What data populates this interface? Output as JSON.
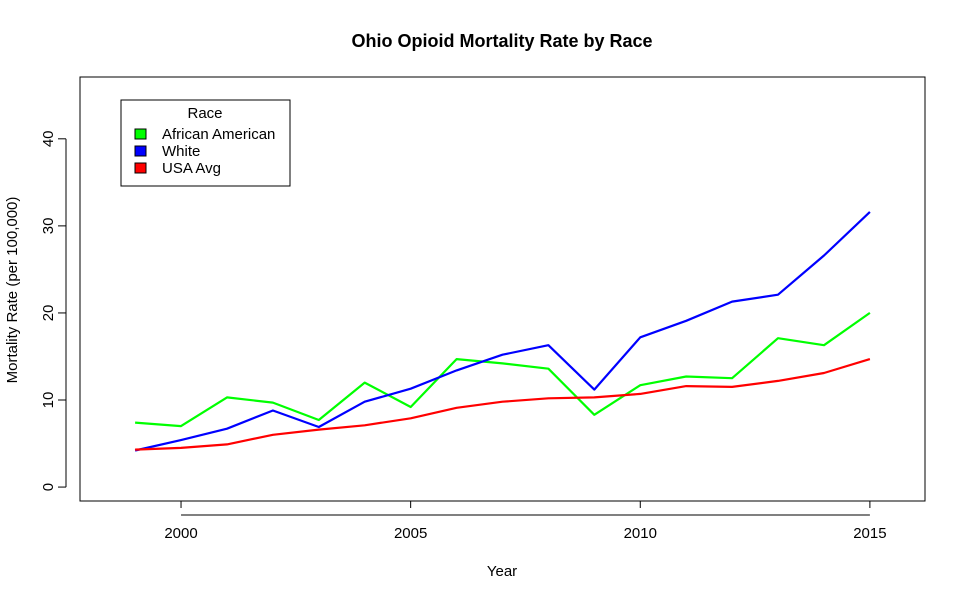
{
  "chart_data": {
    "type": "line",
    "title": "Ohio Opioid Mortality Rate by Race",
    "xlabel": "Year",
    "ylabel": "Mortality Rate (per 100,000)",
    "x": [
      1999,
      2000,
      2001,
      2002,
      2003,
      2004,
      2005,
      2006,
      2007,
      2008,
      2009,
      2010,
      2011,
      2012,
      2013,
      2014,
      2015
    ],
    "xlim": [
      1997.8,
      2016.2
    ],
    "ylim": [
      -1.6,
      47.1
    ],
    "xticks": [
      2000,
      2005,
      2010,
      2015
    ],
    "yticks": [
      0,
      10,
      20,
      30,
      40
    ],
    "grid": false,
    "legend": {
      "title": "Race",
      "placement": "top-left"
    },
    "series": [
      {
        "name": "African American",
        "color": "#00ff00",
        "values": [
          7.4,
          7.0,
          10.3,
          9.7,
          7.7,
          12.0,
          9.2,
          14.7,
          14.2,
          13.6,
          8.3,
          11.7,
          12.7,
          12.5,
          17.1,
          16.3,
          20.0
        ]
      },
      {
        "name": "White",
        "color": "#0000ff",
        "values": [
          4.2,
          5.4,
          6.7,
          8.8,
          6.9,
          9.8,
          11.3,
          13.4,
          15.2,
          16.3,
          11.2,
          17.2,
          19.1,
          21.3,
          22.1,
          26.6,
          31.6
        ]
      },
      {
        "name": "USA Avg",
        "color": "#ff0000",
        "values": [
          4.3,
          4.5,
          4.9,
          6.0,
          6.6,
          7.1,
          7.9,
          9.1,
          9.8,
          10.2,
          10.3,
          10.7,
          11.6,
          11.5,
          12.2,
          13.1,
          14.7
        ]
      }
    ]
  }
}
